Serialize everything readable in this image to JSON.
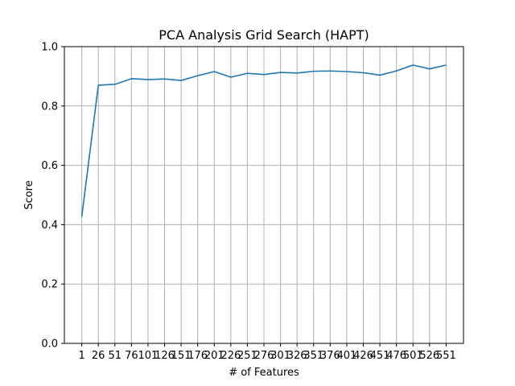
{
  "chart_data": {
    "type": "line",
    "title": "PCA Analysis Grid Search (HAPT)",
    "xlabel": "# of Features",
    "ylabel": "Score",
    "x": [
      1,
      26,
      51,
      76,
      101,
      126,
      151,
      176,
      201,
      226,
      251,
      276,
      301,
      326,
      351,
      376,
      401,
      426,
      451,
      476,
      501,
      526,
      551
    ],
    "series": [
      {
        "values": [
          0.427,
          0.87,
          0.873,
          0.892,
          0.889,
          0.891,
          0.886,
          0.902,
          0.916,
          0.897,
          0.91,
          0.906,
          0.913,
          0.911,
          0.917,
          0.918,
          0.916,
          0.912,
          0.904,
          0.918,
          0.938,
          0.925,
          0.938
        ],
        "color": "#1f77b4"
      }
    ],
    "ylim": [
      0.0,
      1.0
    ],
    "yticks": [
      0.0,
      0.2,
      0.4,
      0.6,
      0.8,
      1.0
    ],
    "ytick_labels": [
      "0.0",
      "0.2",
      "0.4",
      "0.6",
      "0.8",
      "1.0"
    ],
    "grid": true
  }
}
